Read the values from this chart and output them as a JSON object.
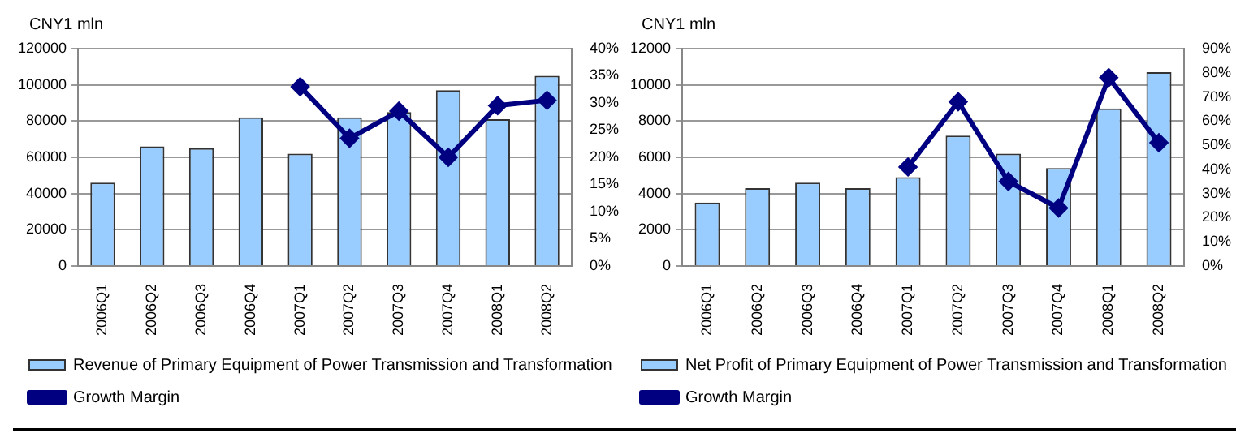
{
  "chart_data": [
    {
      "type": "bar",
      "ylabel": "CNY1 mln",
      "categories": [
        "2006Q1",
        "2006Q2",
        "2006Q3",
        "2006Q4",
        "2007Q1",
        "2007Q2",
        "2007Q3",
        "2007Q4",
        "2008Q1",
        "2008Q2"
      ],
      "series": [
        {
          "name": "Revenue of Primary Equipment of Power Transmission and Transformation",
          "color": "#99ccff",
          "values": [
            46000,
            66000,
            65000,
            82000,
            62000,
            82000,
            85000,
            97000,
            81000,
            105000
          ]
        },
        {
          "name": "Growth Margin",
          "type": "line",
          "axis": "y2",
          "color": "#000080",
          "values": [
            null,
            null,
            null,
            null,
            33,
            23.5,
            28.5,
            20,
            29.5,
            30.5
          ]
        }
      ],
      "ylim": [
        0,
        120000
      ],
      "yticks": [
        0,
        20000,
        40000,
        60000,
        80000,
        100000,
        120000
      ],
      "y2lim": [
        0,
        40
      ],
      "y2ticks": [
        {
          "value": 0,
          "label": "0%"
        },
        {
          "value": 5,
          "label": "5%"
        },
        {
          "value": 10,
          "label": "10%"
        },
        {
          "value": 15,
          "label": "15%"
        },
        {
          "value": 20,
          "label": "20%"
        },
        {
          "value": 25,
          "label": "25%"
        },
        {
          "value": 30,
          "label": "30%"
        },
        {
          "value": 35,
          "label": "35%"
        },
        {
          "value": 40,
          "label": "40%"
        }
      ],
      "grid": "y",
      "legend": "bottom",
      "marker": "diamond",
      "line_style": "solid"
    },
    {
      "type": "bar",
      "ylabel": "CNY1 mln",
      "categories": [
        "2006Q1",
        "2006Q2",
        "2006Q3",
        "2006Q4",
        "2007Q1",
        "2007Q2",
        "2007Q3",
        "2007Q4",
        "2008Q1",
        "2008Q2"
      ],
      "series": [
        {
          "name": "Net Profit of Primary Equipment of Power Transmission and Transformation",
          "color": "#99ccff",
          "values": [
            3500,
            4300,
            4600,
            4300,
            4900,
            7200,
            6200,
            5400,
            8700,
            10700
          ]
        },
        {
          "name": "Growth Margin",
          "type": "line",
          "axis": "y2",
          "color": "#000080",
          "values": [
            null,
            null,
            null,
            null,
            41,
            68,
            35,
            24,
            78,
            51
          ]
        }
      ],
      "ylim": [
        0,
        12000
      ],
      "yticks": [
        0,
        2000,
        4000,
        6000,
        8000,
        10000,
        12000
      ],
      "y2lim": [
        0,
        90
      ],
      "y2ticks": [
        {
          "value": 0,
          "label": "0%"
        },
        {
          "value": 10,
          "label": "10%"
        },
        {
          "value": 20,
          "label": "20%"
        },
        {
          "value": 30,
          "label": "30%"
        },
        {
          "value": 40,
          "label": "40%"
        },
        {
          "value": 50,
          "label": "50%"
        },
        {
          "value": 60,
          "label": "60%"
        },
        {
          "value": 70,
          "label": "70%"
        },
        {
          "value": 80,
          "label": "80%"
        },
        {
          "value": 90,
          "label": "90%"
        }
      ],
      "grid": "y",
      "legend": "bottom",
      "marker": "diamond",
      "line_style": "solid"
    }
  ]
}
